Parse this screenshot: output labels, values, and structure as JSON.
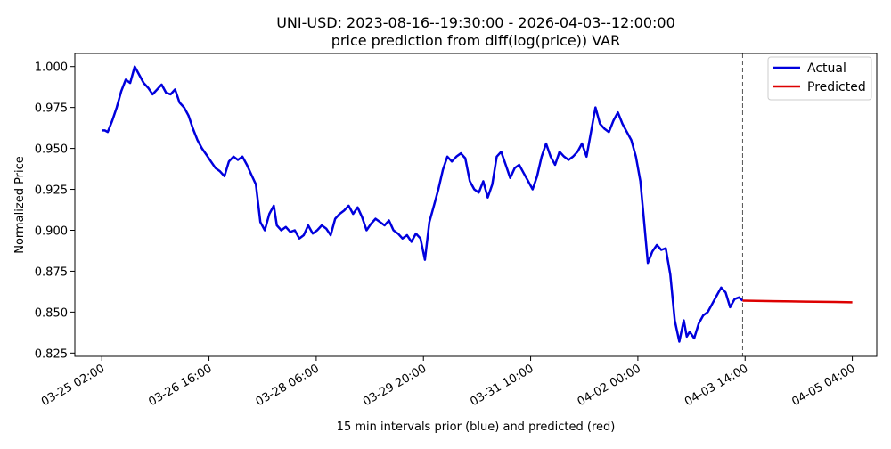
{
  "chart_data": {
    "type": "line",
    "title": "UNI-USD: 2023-08-16--19:30:00 - 2026-04-03--12:00:00",
    "subtitle": "price prediction from diff(log(price)) VAR",
    "xlabel": "15 min intervals prior (blue) and predicted (red)",
    "ylabel": "Normalized Price",
    "ylim": [
      0.823,
      1.008
    ],
    "y_ticks": [
      0.825,
      0.85,
      0.875,
      0.9,
      0.925,
      0.95,
      0.975,
      1.0
    ],
    "y_tick_labels": [
      "0.825",
      "0.850",
      "0.875",
      "0.900",
      "0.925",
      "0.950",
      "0.975",
      "1.000"
    ],
    "x_ticks": [
      0,
      3.5833,
      7.1667,
      10.75,
      14.3333,
      17.9167,
      21.5,
      25.0833
    ],
    "x_tick_labels": [
      "03-25 02:00",
      "03-26 16:00",
      "03-28 06:00",
      "03-29 20:00",
      "03-31 10:00",
      "04-02 00:00",
      "04-03 14:00",
      "04-05 04:00"
    ],
    "xlim": [
      -0.9,
      25.9
    ],
    "x_unit": "days after 03-25 02:00",
    "grid": false,
    "legend": {
      "placement": "top-right",
      "entries": [
        "Actual",
        "Predicted"
      ]
    },
    "forecast_boundary_x": 21.4167,
    "series": [
      {
        "name": "Actual",
        "color": "#0000dd",
        "x": [
          0.0,
          0.1,
          0.2,
          0.35,
          0.5,
          0.65,
          0.8,
          0.95,
          1.1,
          1.25,
          1.4,
          1.55,
          1.7,
          1.85,
          2.0,
          2.15,
          2.3,
          2.45,
          2.6,
          2.75,
          2.9,
          3.05,
          3.2,
          3.35,
          3.5,
          3.65,
          3.8,
          3.95,
          4.1,
          4.25,
          4.4,
          4.55,
          4.7,
          4.85,
          5.0,
          5.15,
          5.3,
          5.45,
          5.6,
          5.75,
          5.85,
          6.0,
          6.15,
          6.3,
          6.45,
          6.6,
          6.75,
          6.9,
          7.05,
          7.2,
          7.35,
          7.5,
          7.65,
          7.8,
          7.95,
          8.1,
          8.25,
          8.4,
          8.55,
          8.7,
          8.85,
          9.0,
          9.15,
          9.3,
          9.45,
          9.6,
          9.75,
          9.9,
          10.05,
          10.2,
          10.35,
          10.5,
          10.65,
          10.8,
          10.95,
          11.1,
          11.25,
          11.4,
          11.55,
          11.7,
          11.85,
          12.0,
          12.15,
          12.3,
          12.45,
          12.6,
          12.75,
          12.9,
          13.05,
          13.2,
          13.35,
          13.5,
          13.65,
          13.8,
          13.95,
          14.1,
          14.25,
          14.4,
          14.55,
          14.7,
          14.85,
          15.0,
          15.15,
          15.3,
          15.45,
          15.6,
          15.75,
          15.9,
          16.05,
          16.2,
          16.35,
          16.5,
          16.65,
          16.8,
          16.95,
          17.1,
          17.25,
          17.4,
          17.55,
          17.7,
          17.85,
          18.0,
          18.1,
          18.25,
          18.4,
          18.55,
          18.7,
          18.85,
          19.0,
          19.15,
          19.3,
          19.45,
          19.55,
          19.65,
          19.8,
          19.95,
          20.1,
          20.25,
          20.4,
          20.55,
          20.7,
          20.85,
          21.0,
          21.15,
          21.3,
          21.4167
        ],
        "values": [
          0.961,
          0.961,
          0.96,
          0.967,
          0.975,
          0.985,
          0.992,
          0.99,
          1.0,
          0.995,
          0.99,
          0.987,
          0.983,
          0.986,
          0.989,
          0.984,
          0.983,
          0.986,
          0.978,
          0.975,
          0.97,
          0.962,
          0.955,
          0.95,
          0.946,
          0.942,
          0.938,
          0.936,
          0.933,
          0.942,
          0.945,
          0.943,
          0.945,
          0.94,
          0.934,
          0.928,
          0.905,
          0.9,
          0.91,
          0.915,
          0.903,
          0.9,
          0.902,
          0.899,
          0.9,
          0.895,
          0.897,
          0.903,
          0.898,
          0.9,
          0.903,
          0.901,
          0.897,
          0.907,
          0.91,
          0.912,
          0.915,
          0.91,
          0.914,
          0.908,
          0.9,
          0.904,
          0.907,
          0.905,
          0.903,
          0.906,
          0.9,
          0.898,
          0.895,
          0.897,
          0.893,
          0.898,
          0.895,
          0.882,
          0.905,
          0.915,
          0.925,
          0.937,
          0.945,
          0.942,
          0.945,
          0.947,
          0.944,
          0.93,
          0.925,
          0.923,
          0.93,
          0.92,
          0.928,
          0.945,
          0.948,
          0.94,
          0.932,
          0.938,
          0.94,
          0.935,
          0.93,
          0.925,
          0.933,
          0.945,
          0.953,
          0.945,
          0.94,
          0.948,
          0.945,
          0.943,
          0.945,
          0.948,
          0.953,
          0.945,
          0.96,
          0.975,
          0.965,
          0.962,
          0.96,
          0.967,
          0.972,
          0.965,
          0.96,
          0.955,
          0.945,
          0.93,
          0.91,
          0.88,
          0.887,
          0.891,
          0.888,
          0.889,
          0.873,
          0.845,
          0.832,
          0.845,
          0.835,
          0.838,
          0.834,
          0.843,
          0.848,
          0.85,
          0.855,
          0.86,
          0.865,
          0.862,
          0.853,
          0.858,
          0.859,
          0.857
        ]
      },
      {
        "name": "Predicted",
        "color": "#dd0000",
        "x": [
          21.4167,
          22.5,
          23.5,
          24.5,
          25.0833
        ],
        "values": [
          0.857,
          0.8567,
          0.8564,
          0.8562,
          0.856
        ]
      }
    ]
  }
}
